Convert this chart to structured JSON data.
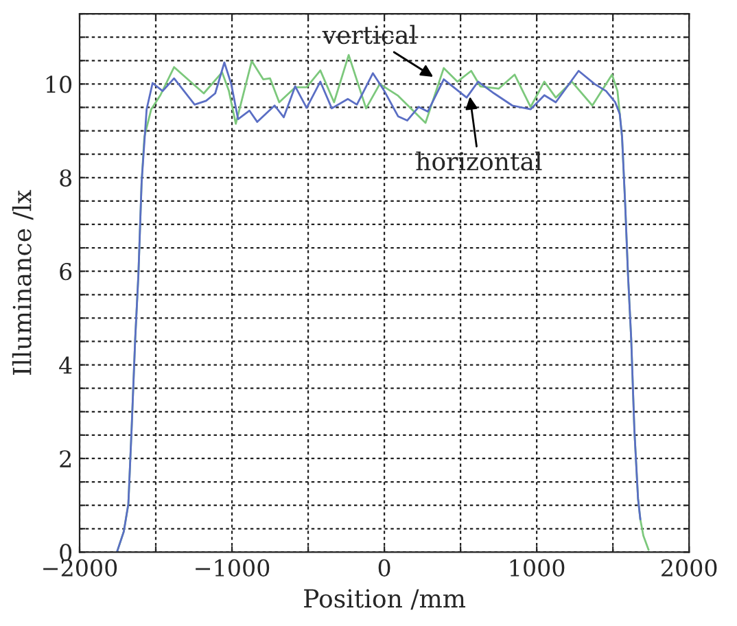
{
  "chart_data": {
    "type": "line",
    "xlabel": "Position /mm",
    "ylabel": "Illuminance /lx",
    "xlim": [
      -2000,
      2000
    ],
    "ylim": [
      0,
      11.5
    ],
    "xticks": [
      {
        "value": -2000,
        "label": "−2000"
      },
      {
        "value": -1500,
        "label": null
      },
      {
        "value": -1000,
        "label": "−1000"
      },
      {
        "value": -500,
        "label": null
      },
      0,
      {
        "value": 500,
        "label": null
      },
      1000,
      {
        "value": 1500,
        "label": null
      },
      2000
    ],
    "yticks": [
      0,
      {
        "value": 0.5,
        "label": null
      },
      {
        "value": 1,
        "label": null
      },
      {
        "value": 1.5,
        "label": null
      },
      2,
      {
        "value": 2.5,
        "label": null
      },
      {
        "value": 3,
        "label": null
      },
      {
        "value": 3.5,
        "label": null
      },
      4,
      {
        "value": 4.5,
        "label": null
      },
      {
        "value": 5,
        "label": null
      },
      {
        "value": 5.5,
        "label": null
      },
      6,
      {
        "value": 6.5,
        "label": null
      },
      {
        "value": 7,
        "label": null
      },
      {
        "value": 7.5,
        "label": null
      },
      8,
      {
        "value": 8.5,
        "label": null
      },
      {
        "value": 9,
        "label": null
      },
      {
        "value": 9.5,
        "label": null
      },
      10,
      {
        "value": 10.5,
        "label": null
      },
      {
        "value": 11,
        "label": null
      },
      {
        "value": 11.5,
        "label": null
      }
    ],
    "grid": true,
    "legend": false,
    "marker": "none",
    "line_style": "solid",
    "series": [
      {
        "color": "#7cc87c",
        "x": [
          -1755,
          -1710,
          -1680,
          -1659,
          -1635,
          -1614,
          -1593,
          -1575,
          -1530,
          -1470,
          -1380,
          -1290,
          -1185,
          -1065,
          -1020,
          -975,
          -870,
          -795,
          -750,
          -690,
          -585,
          -510,
          -420,
          -330,
          -234,
          -120,
          -30,
          90,
          180,
          270,
          390,
          480,
          570,
          630,
          750,
          855,
          960,
          1050,
          1125,
          1230,
          1365,
          1494,
          1530,
          1560,
          1581,
          1599,
          1620,
          1641,
          1665,
          1680,
          1700,
          1734
        ],
        "values": [
          0,
          0.44,
          1.03,
          2.6,
          4.56,
          5.93,
          7.9,
          8.87,
          9.46,
          9.76,
          10.36,
          10.1,
          9.8,
          10.25,
          9.85,
          9.15,
          10.49,
          10.1,
          10.12,
          9.61,
          9.93,
          9.93,
          10.29,
          9.61,
          10.62,
          9.48,
          10,
          9.75,
          9.46,
          9.17,
          10.34,
          10.05,
          10.28,
          9.95,
          9.9,
          10.2,
          9.51,
          10.05,
          9.71,
          10.05,
          9.54,
          10.2,
          9.85,
          8.87,
          7.4,
          5.93,
          4.56,
          2.6,
          1.14,
          0.7,
          0.35,
          0.05
        ]
      },
      {
        "color": "#5a6ec4",
        "x": [
          -1755,
          -1710,
          -1680,
          -1659,
          -1635,
          -1614,
          -1593,
          -1560,
          -1521,
          -1455,
          -1380,
          -1245,
          -1170,
          -1110,
          -1050,
          -1005,
          -960,
          -885,
          -834,
          -720,
          -660,
          -585,
          -510,
          -420,
          -345,
          -240,
          -180,
          -75,
          0,
          90,
          150,
          225,
          285,
          390,
          540,
          615,
          720,
          840,
          960,
          1050,
          1125,
          1275,
          1380,
          1455,
          1515,
          1545,
          1560,
          1581,
          1599,
          1620,
          1641,
          1665,
          1680
        ],
        "values": [
          0,
          0.44,
          1.03,
          2.6,
          4.56,
          5.93,
          7.9,
          9.46,
          10.02,
          9.85,
          10.12,
          9.56,
          9.64,
          9.8,
          10.46,
          10.0,
          9.25,
          9.43,
          9.19,
          9.54,
          9.29,
          9.95,
          9.49,
          10.05,
          9.48,
          9.68,
          9.56,
          10.23,
          9.85,
          9.31,
          9.22,
          9.51,
          9.41,
          10.1,
          9.71,
          10.05,
          9.8,
          9.54,
          9.46,
          9.76,
          9.61,
          10.28,
          10.0,
          9.85,
          9.61,
          9.36,
          8.87,
          7.4,
          5.93,
          4.56,
          2.6,
          1.14,
          0.7
        ]
      }
    ],
    "annotations": [
      {
        "text": "vertical",
        "x": 342,
        "y": 10.11
      },
      {
        "text": "horizontal",
        "x": 558,
        "y": 9.81
      }
    ]
  }
}
